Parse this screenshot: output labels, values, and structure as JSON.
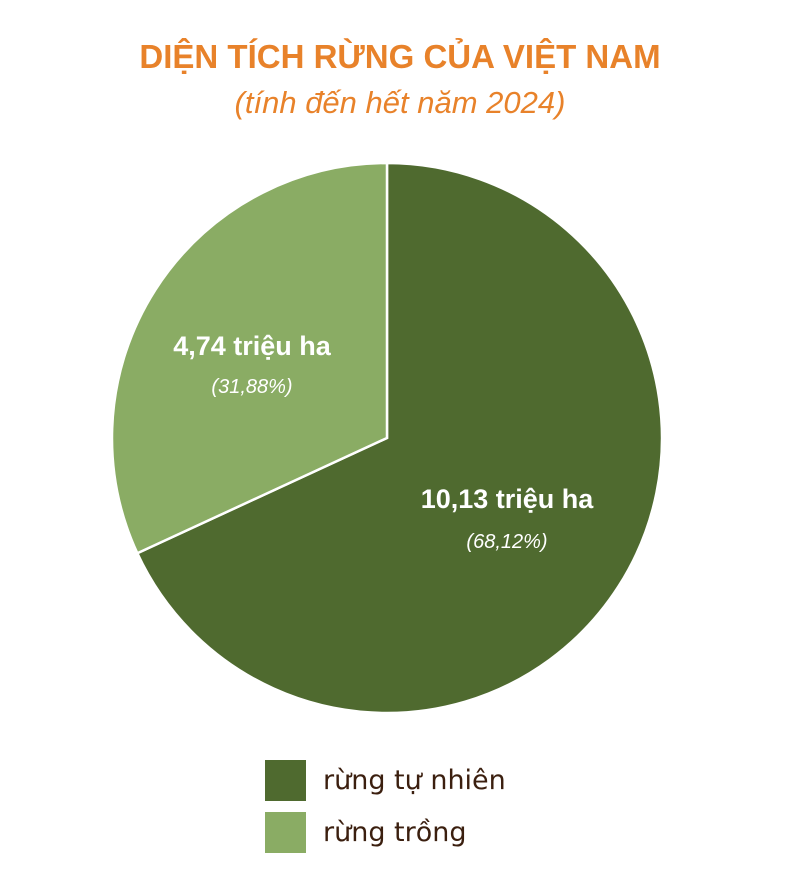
{
  "chart_data": {
    "type": "pie",
    "title": "DIỆN TÍCH RỪNG CỦA VIỆT NAM",
    "subtitle": "(tính đến hết năm 2024)",
    "series": [
      {
        "name": "rừng tự nhiên",
        "value": 10.13,
        "percent": 68.12,
        "value_label": "10,13 triệu ha",
        "percent_label": "(68,12%)",
        "color": "#4f6a2f"
      },
      {
        "name": "rừng trồng",
        "value": 4.74,
        "percent": 31.88,
        "value_label": "4,74 triệu ha",
        "percent_label": "(31,88%)",
        "color": "#8aac64"
      }
    ],
    "start_angle": "12 o'clock",
    "direction": "clockwise",
    "legend_position": "bottom"
  },
  "colors": {
    "title": "#e8822a",
    "legend_text": "#3b1f0f",
    "label_text": "#ffffff"
  }
}
